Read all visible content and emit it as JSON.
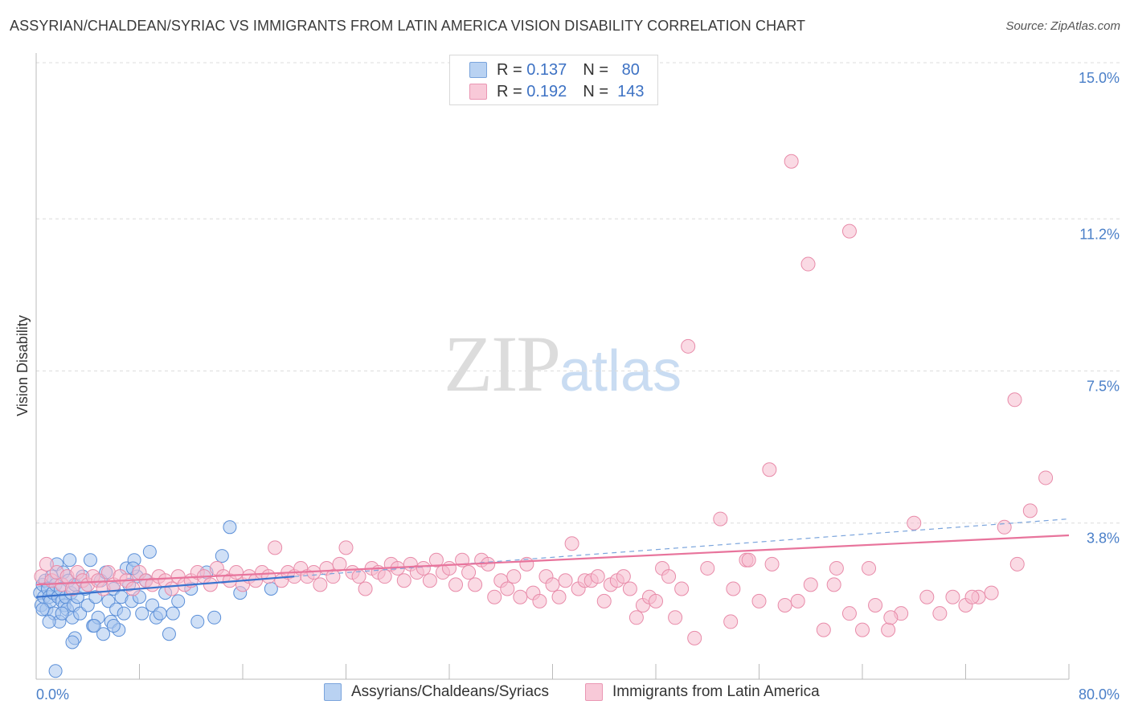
{
  "title": "ASSYRIAN/CHALDEAN/SYRIAC VS IMMIGRANTS FROM LATIN AMERICA VISION DISABILITY CORRELATION CHART",
  "source": "Source: ZipAtlas.com",
  "watermark": {
    "zip": "ZIP",
    "atlas": "atlas"
  },
  "colors": {
    "blue": "#5b8fd8",
    "blue_fill": "#a9c7ee",
    "pink": "#e8749c",
    "pink_fill": "#f5bccd",
    "tick_text": "#4a7fc8"
  },
  "legend": {
    "rows": [
      {
        "r_label": "R =",
        "r_value": "0.137",
        "n_label": "N =",
        "n_value": "80"
      },
      {
        "r_label": "R =",
        "r_value": "0.192",
        "n_label": "N =",
        "n_value": "143"
      }
    ]
  },
  "bottom_legend": [
    "Assyrians/Chaldeans/Syriacs",
    "Immigrants from Latin America"
  ],
  "chart_data": {
    "type": "scatter",
    "xlabel": "",
    "ylabel": "Vision Disability",
    "xlim": [
      0,
      80
    ],
    "ylim": [
      0,
      15
    ],
    "x_tick_labels": [
      "0.0%",
      "80.0%"
    ],
    "y_ticks": [
      3.8,
      7.5,
      11.2,
      15.0
    ],
    "y_tick_labels": [
      "3.8%",
      "7.5%",
      "11.2%",
      "15.0%"
    ],
    "grid": "horizontal dashed",
    "series": [
      {
        "name": "Assyrians/Chaldeans/Syriacs",
        "color": "#5b8fd8",
        "trend": {
          "x": [
            0,
            20
          ],
          "y": [
            2.0,
            2.5
          ]
        },
        "points": [
          [
            0.3,
            2.1
          ],
          [
            0.4,
            1.8
          ],
          [
            0.5,
            2.3
          ],
          [
            0.6,
            2.0
          ],
          [
            0.7,
            2.4
          ],
          [
            0.8,
            1.7
          ],
          [
            0.9,
            2.2
          ],
          [
            1.0,
            2.0
          ],
          [
            1.1,
            1.9
          ],
          [
            1.2,
            2.5
          ],
          [
            1.3,
            2.1
          ],
          [
            1.4,
            1.6
          ],
          [
            1.5,
            2.3
          ],
          [
            1.6,
            2.8
          ],
          [
            1.7,
            2.0
          ],
          [
            1.8,
            1.4
          ],
          [
            1.9,
            2.2
          ],
          [
            2.0,
            1.9
          ],
          [
            2.1,
            2.6
          ],
          [
            2.2,
            1.8
          ],
          [
            2.3,
            2.0
          ],
          [
            2.4,
            1.7
          ],
          [
            2.5,
            2.4
          ],
          [
            2.6,
            2.9
          ],
          [
            2.7,
            2.1
          ],
          [
            2.8,
            1.5
          ],
          [
            2.9,
            1.8
          ],
          [
            3.0,
            2.3
          ],
          [
            3.2,
            2.0
          ],
          [
            3.4,
            1.6
          ],
          [
            3.6,
            2.5
          ],
          [
            3.8,
            2.2
          ],
          [
            4.0,
            1.8
          ],
          [
            4.2,
            2.9
          ],
          [
            4.4,
            1.3
          ],
          [
            4.6,
            2.0
          ],
          [
            4.8,
            1.5
          ],
          [
            5.0,
            2.4
          ],
          [
            5.2,
            1.1
          ],
          [
            5.4,
            2.6
          ],
          [
            5.6,
            1.9
          ],
          [
            5.8,
            1.4
          ],
          [
            6.0,
            2.2
          ],
          [
            6.2,
            1.7
          ],
          [
            6.4,
            1.2
          ],
          [
            6.6,
            2.0
          ],
          [
            6.8,
            1.6
          ],
          [
            7.0,
            2.7
          ],
          [
            7.2,
            2.3
          ],
          [
            7.4,
            1.9
          ],
          [
            7.6,
            2.9
          ],
          [
            7.8,
            2.5
          ],
          [
            8.0,
            2.0
          ],
          [
            8.2,
            1.6
          ],
          [
            8.5,
            2.4
          ],
          [
            8.8,
            3.1
          ],
          [
            9.0,
            1.8
          ],
          [
            9.3,
            1.5
          ],
          [
            9.6,
            1.6
          ],
          [
            10.0,
            2.1
          ],
          [
            10.3,
            1.1
          ],
          [
            10.6,
            1.6
          ],
          [
            11.0,
            1.9
          ],
          [
            12.0,
            2.2
          ],
          [
            12.5,
            1.4
          ],
          [
            13.2,
            2.6
          ],
          [
            13.8,
            1.5
          ],
          [
            14.4,
            3.0
          ],
          [
            15.0,
            3.7
          ],
          [
            15.8,
            2.1
          ],
          [
            18.2,
            2.2
          ],
          [
            1.5,
            0.2
          ],
          [
            3.0,
            1.0
          ],
          [
            2.8,
            0.9
          ],
          [
            4.5,
            1.3
          ],
          [
            6.0,
            1.3
          ],
          [
            7.5,
            2.7
          ],
          [
            0.5,
            1.7
          ],
          [
            1.0,
            1.4
          ],
          [
            2.0,
            1.6
          ]
        ]
      },
      {
        "name": "Immigrants from Latin America",
        "color": "#e8749c",
        "trend": {
          "x": [
            0,
            80
          ],
          "y": [
            2.3,
            3.5
          ]
        },
        "trend_dashed": {
          "x": [
            20,
            80
          ],
          "y": [
            2.5,
            3.9
          ]
        },
        "points": [
          [
            0.4,
            2.5
          ],
          [
            0.8,
            2.8
          ],
          [
            1.2,
            2.4
          ],
          [
            1.6,
            2.6
          ],
          [
            2.0,
            2.3
          ],
          [
            2.4,
            2.5
          ],
          [
            2.8,
            2.2
          ],
          [
            3.2,
            2.6
          ],
          [
            3.6,
            2.4
          ],
          [
            4.0,
            2.3
          ],
          [
            4.4,
            2.5
          ],
          [
            4.8,
            2.4
          ],
          [
            5.2,
            2.2
          ],
          [
            5.6,
            2.6
          ],
          [
            6.0,
            2.3
          ],
          [
            6.5,
            2.5
          ],
          [
            7.0,
            2.4
          ],
          [
            7.5,
            2.2
          ],
          [
            8.0,
            2.6
          ],
          [
            8.5,
            2.4
          ],
          [
            9.0,
            2.3
          ],
          [
            9.5,
            2.5
          ],
          [
            10.0,
            2.4
          ],
          [
            10.5,
            2.2
          ],
          [
            11.0,
            2.5
          ],
          [
            11.5,
            2.3
          ],
          [
            12.0,
            2.4
          ],
          [
            12.5,
            2.6
          ],
          [
            13.0,
            2.5
          ],
          [
            13.5,
            2.3
          ],
          [
            14.0,
            2.7
          ],
          [
            14.5,
            2.5
          ],
          [
            15.0,
            2.4
          ],
          [
            15.5,
            2.6
          ],
          [
            16.0,
            2.3
          ],
          [
            16.5,
            2.5
          ],
          [
            17.0,
            2.4
          ],
          [
            17.5,
            2.6
          ],
          [
            18.0,
            2.5
          ],
          [
            18.5,
            3.2
          ],
          [
            19.0,
            2.4
          ],
          [
            19.5,
            2.6
          ],
          [
            20.0,
            2.5
          ],
          [
            20.5,
            2.7
          ],
          [
            21.0,
            2.5
          ],
          [
            21.5,
            2.6
          ],
          [
            22.0,
            2.3
          ],
          [
            22.5,
            2.7
          ],
          [
            23.0,
            2.5
          ],
          [
            23.5,
            2.8
          ],
          [
            24.0,
            3.2
          ],
          [
            24.5,
            2.6
          ],
          [
            25.0,
            2.5
          ],
          [
            25.5,
            2.2
          ],
          [
            26.0,
            2.7
          ],
          [
            26.5,
            2.6
          ],
          [
            27.0,
            2.5
          ],
          [
            27.5,
            2.8
          ],
          [
            28.0,
            2.7
          ],
          [
            28.5,
            2.4
          ],
          [
            29.0,
            2.8
          ],
          [
            29.5,
            2.6
          ],
          [
            30.0,
            2.7
          ],
          [
            30.5,
            2.4
          ],
          [
            31.0,
            2.9
          ],
          [
            31.5,
            2.6
          ],
          [
            32.0,
            2.7
          ],
          [
            32.5,
            2.3
          ],
          [
            33.0,
            2.9
          ],
          [
            33.5,
            2.6
          ],
          [
            34.0,
            2.3
          ],
          [
            34.5,
            2.9
          ],
          [
            35.0,
            2.8
          ],
          [
            35.5,
            2.0
          ],
          [
            36.0,
            2.4
          ],
          [
            36.5,
            2.2
          ],
          [
            37.0,
            2.5
          ],
          [
            37.5,
            2.0
          ],
          [
            38.0,
            2.8
          ],
          [
            38.5,
            2.1
          ],
          [
            39.0,
            1.9
          ],
          [
            39.5,
            2.5
          ],
          [
            40.0,
            2.3
          ],
          [
            40.5,
            2.0
          ],
          [
            41.0,
            2.4
          ],
          [
            41.5,
            3.3
          ],
          [
            42.0,
            2.2
          ],
          [
            42.5,
            2.4
          ],
          [
            43.0,
            2.4
          ],
          [
            43.5,
            2.5
          ],
          [
            44.0,
            1.9
          ],
          [
            44.5,
            2.3
          ],
          [
            45.0,
            2.4
          ],
          [
            45.5,
            2.5
          ],
          [
            46.0,
            2.2
          ],
          [
            46.5,
            1.5
          ],
          [
            47.0,
            1.8
          ],
          [
            47.5,
            2.0
          ],
          [
            48.0,
            1.9
          ],
          [
            48.5,
            2.7
          ],
          [
            49.0,
            2.5
          ],
          [
            49.5,
            1.5
          ],
          [
            50.0,
            2.2
          ],
          [
            51.0,
            1.0
          ],
          [
            52.0,
            2.7
          ],
          [
            53.0,
            3.9
          ],
          [
            54.0,
            2.2
          ],
          [
            55.0,
            2.9
          ],
          [
            56.0,
            1.9
          ],
          [
            57.0,
            2.8
          ],
          [
            58.0,
            1.8
          ],
          [
            59.0,
            1.9
          ],
          [
            60.0,
            2.3
          ],
          [
            61.0,
            1.2
          ],
          [
            62.0,
            2.7
          ],
          [
            63.0,
            1.6
          ],
          [
            64.0,
            1.2
          ],
          [
            65.0,
            1.8
          ],
          [
            66.0,
            1.2
          ],
          [
            67.0,
            1.6
          ],
          [
            68.0,
            3.8
          ],
          [
            69.0,
            2.0
          ],
          [
            70.0,
            1.6
          ],
          [
            71.0,
            2.0
          ],
          [
            72.0,
            1.8
          ],
          [
            73.0,
            2.0
          ],
          [
            74.0,
            2.1
          ],
          [
            75.0,
            3.7
          ],
          [
            76.0,
            2.8
          ],
          [
            77.0,
            4.1
          ],
          [
            58.5,
            12.6
          ],
          [
            63.0,
            10.9
          ],
          [
            59.8,
            10.1
          ],
          [
            50.5,
            8.1
          ],
          [
            56.8,
            5.1
          ],
          [
            75.8,
            6.8
          ],
          [
            78.2,
            4.9
          ],
          [
            55.2,
            2.9
          ],
          [
            53.8,
            1.4
          ],
          [
            61.8,
            2.3
          ],
          [
            64.5,
            2.7
          ],
          [
            66.2,
            1.5
          ],
          [
            72.5,
            2.0
          ]
        ]
      }
    ]
  }
}
